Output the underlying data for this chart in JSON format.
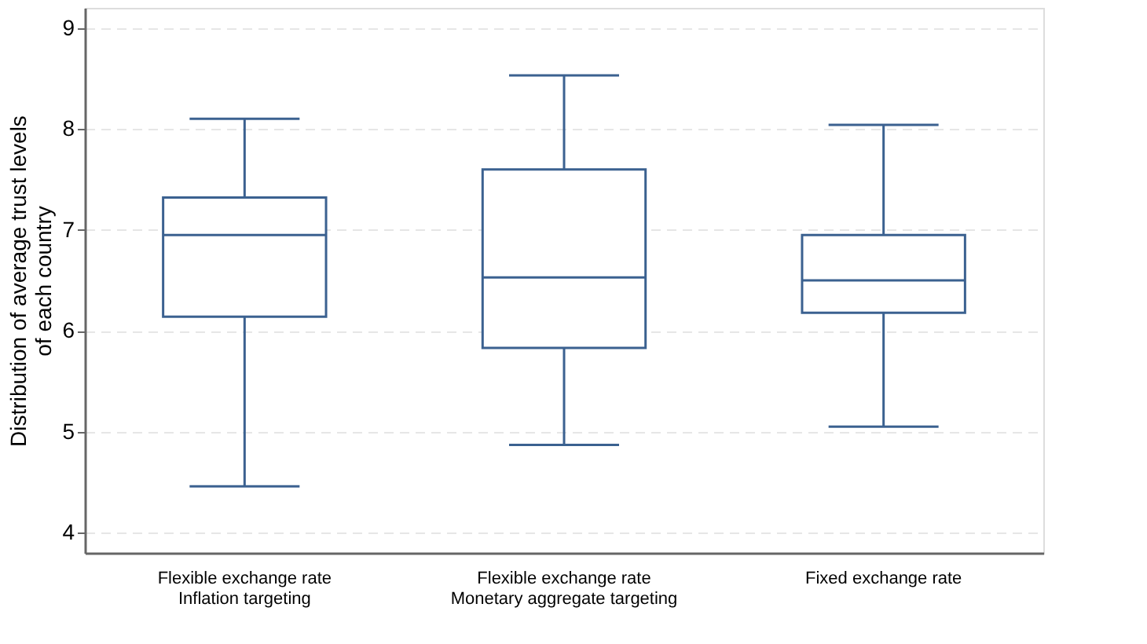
{
  "chart_data": {
    "type": "box",
    "ylabel": "Distribution of average trust levels\nof each country",
    "categories": [
      "Flexible exchange rate\nInflation targeting",
      "Flexible exchange rate\nMonetary aggregate targeting",
      "Fixed exchange rate"
    ],
    "series": [
      {
        "color": "#3b6190",
        "boxes": [
          {
            "low": 4.46,
            "q1": 6.14,
            "median": 6.95,
            "q3": 7.32,
            "high": 8.1
          },
          {
            "low": 4.87,
            "q1": 5.83,
            "median": 6.53,
            "q3": 7.6,
            "high": 8.53
          },
          {
            "low": 5.05,
            "q1": 6.18,
            "median": 6.5,
            "q3": 6.95,
            "high": 8.04
          }
        ]
      }
    ],
    "ylim": [
      3.8,
      9.2
    ],
    "yticks": [
      4,
      5,
      6,
      7,
      8,
      9
    ],
    "grid": "y"
  }
}
